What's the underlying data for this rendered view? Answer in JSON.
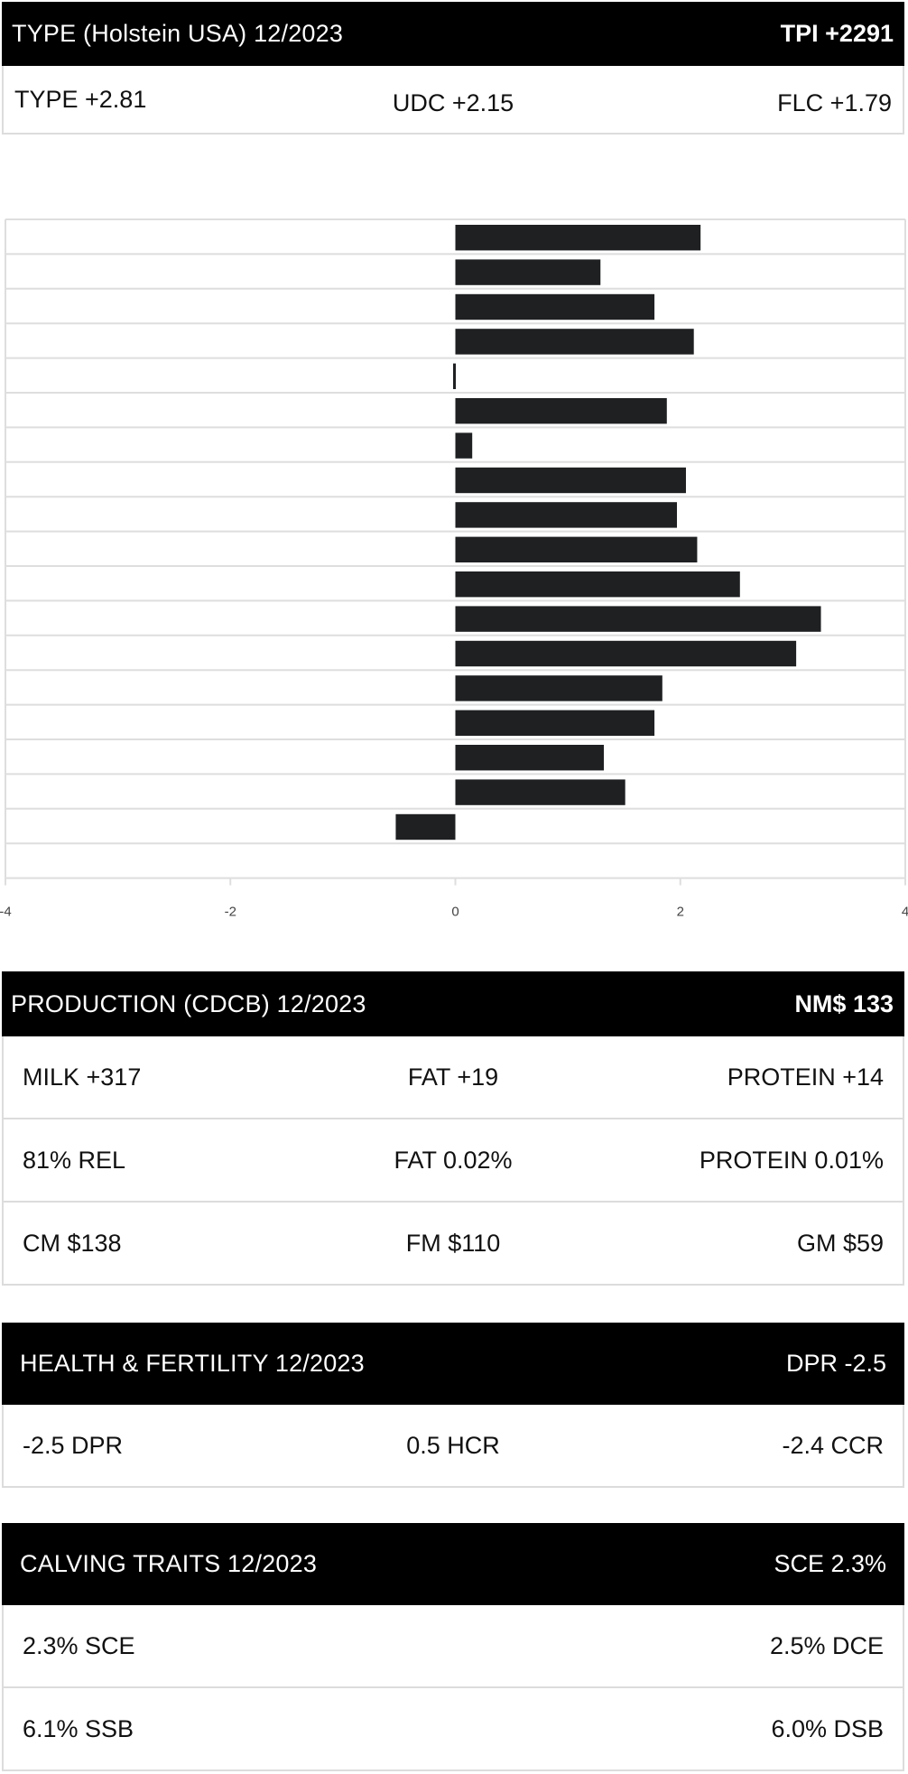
{
  "type_section": {
    "title": "TYPE (Holstein USA) 12/2023",
    "summary": "TPI +2291",
    "values": [
      "TYPE +2.81",
      "UDC +2.15",
      "FLC +1.79"
    ]
  },
  "production_section": {
    "title": "PRODUCTION (CDCB) 12/2023",
    "summary": "NM$ 133",
    "rows": [
      [
        "MILK +317",
        "FAT +19",
        "PROTEIN +14"
      ],
      [
        "81% REL",
        "FAT 0.02%",
        "PROTEIN 0.01%"
      ],
      [
        "CM $138",
        "FM $110",
        "GM $59"
      ]
    ]
  },
  "health_section": {
    "title": "HEALTH & FERTILITY 12/2023",
    "summary": "DPR -2.5",
    "values": [
      "-2.5 DPR",
      "0.5 HCR",
      "-2.4 CCR"
    ]
  },
  "calving_section": {
    "title": "CALVING TRAITS 12/2023",
    "summary": "SCE 2.3%",
    "rows": [
      [
        "2.3% SCE",
        "2.5% DCE"
      ],
      [
        "6.1% SSB",
        "6.0% DSB"
      ]
    ]
  },
  "chart_data": {
    "type": "bar",
    "orientation": "horizontal",
    "values": [
      2.18,
      1.29,
      1.77,
      2.12,
      -0.02,
      1.88,
      0.15,
      2.05,
      1.97,
      2.15,
      2.53,
      3.25,
      3.03,
      1.84,
      1.77,
      1.32,
      1.51,
      -0.53
    ],
    "xlim": [
      -4,
      4
    ],
    "xticks": [
      "-4",
      "-2",
      "0",
      "2",
      "4"
    ],
    "bar_color": "#1e2022",
    "grid": true
  },
  "colors": {
    "header_bg": "#000000",
    "header_text": "#ffffff",
    "border": "#dcdcdc"
  }
}
